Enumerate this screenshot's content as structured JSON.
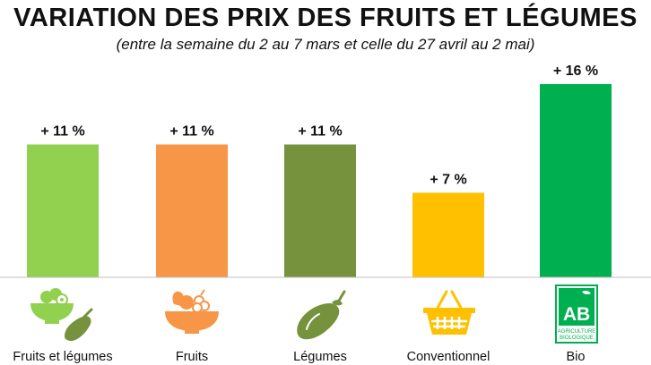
{
  "chart_data": {
    "type": "bar",
    "title": "VARIATION DES PRIX DES FRUITS ET LÉGUMES",
    "subtitle": "(entre la semaine du 2 au 7 mars et celle du 27 avril au 2 mai)",
    "categories": [
      "Fruits et légumes",
      "Fruits",
      "Légumes",
      "Conventionnel",
      "Bio"
    ],
    "values": [
      11,
      11,
      11,
      7,
      16
    ],
    "data_labels": [
      "+ 11 %",
      "+ 11 %",
      "+ 11 %",
      "+ 7 %",
      "+ 16 %"
    ],
    "colors": [
      "#92d050",
      "#f79646",
      "#76923c",
      "#ffc000",
      "#00b050"
    ],
    "unit": "%",
    "xlabel": "",
    "ylabel": "",
    "ylim": [
      0,
      16
    ],
    "grid": false,
    "legend": "none"
  },
  "icons": [
    "fruit-bowl-and-eggplant-icon",
    "fruit-bowl-icon",
    "eggplant-icon",
    "shopping-basket-icon",
    "ab-organic-logo-icon"
  ],
  "logo_text": {
    "ab": "AB",
    "line1": "AGRICULTURE",
    "line2": "BIOLOGIQUE"
  }
}
